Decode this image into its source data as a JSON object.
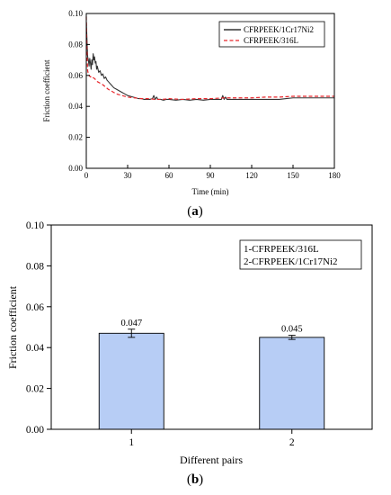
{
  "chart_data": [
    {
      "panel": "(a)",
      "panel_label": {
        "open": "(",
        "letter": "a",
        "close": ")"
      },
      "type": "line",
      "title": "",
      "xlabel": "Time (min)",
      "ylabel": "Friction coefficient",
      "xlim": [
        0,
        180
      ],
      "ylim": [
        0,
        0.1
      ],
      "xticks": [
        0,
        30,
        60,
        90,
        120,
        150,
        180
      ],
      "xtick_labels": [
        "0",
        "30",
        "60",
        "90",
        "120",
        "150",
        "180"
      ],
      "yticks": [
        0,
        0.02,
        0.04,
        0.06,
        0.08,
        0.1
      ],
      "ytick_labels": [
        "0.00",
        "0.02",
        "0.04",
        "0.06",
        "0.08",
        "0.10"
      ],
      "grid": false,
      "legend_position": "top-right",
      "series": [
        {
          "name": "CFRPEEK/1Cr17Ni2",
          "color": "#333333",
          "style": "solid",
          "x": [
            0,
            0.5,
            1,
            1.5,
            2,
            2.5,
            3,
            3.5,
            4,
            4.5,
            5,
            5.5,
            6,
            6.5,
            7,
            7.5,
            8,
            9,
            10,
            11,
            12,
            13,
            14,
            15,
            16,
            18,
            20,
            22,
            24,
            26,
            28,
            30,
            32,
            34,
            36,
            38,
            40,
            42,
            44,
            46,
            48,
            49,
            50,
            51,
            52,
            54,
            56,
            58,
            60,
            65,
            70,
            75,
            80,
            85,
            90,
            95,
            98,
            99,
            100,
            101,
            102,
            105,
            110,
            115,
            120,
            125,
            130,
            135,
            140,
            145,
            150,
            155,
            160,
            165,
            170,
            175,
            180
          ],
          "y": [
            0.095,
            0.083,
            0.072,
            0.07,
            0.066,
            0.071,
            0.068,
            0.064,
            0.07,
            0.067,
            0.074,
            0.07,
            0.072,
            0.068,
            0.069,
            0.064,
            0.066,
            0.062,
            0.063,
            0.06,
            0.061,
            0.058,
            0.059,
            0.057,
            0.056,
            0.054,
            0.052,
            0.051,
            0.05,
            0.049,
            0.048,
            0.047,
            0.0465,
            0.046,
            0.0455,
            0.045,
            0.045,
            0.0445,
            0.0445,
            0.0445,
            0.045,
            0.047,
            0.0445,
            0.046,
            0.0445,
            0.0445,
            0.044,
            0.0445,
            0.0445,
            0.044,
            0.0445,
            0.044,
            0.0445,
            0.044,
            0.0445,
            0.0445,
            0.0445,
            0.047,
            0.0445,
            0.046,
            0.0445,
            0.0445,
            0.0445,
            0.0445,
            0.0445,
            0.0445,
            0.0445,
            0.0445,
            0.0445,
            0.045,
            0.0455,
            0.0455,
            0.0455,
            0.0455,
            0.0455,
            0.0455,
            0.0455
          ]
        },
        {
          "name": "CFRPEEK/316L",
          "color": "#e8262b",
          "style": "dashed",
          "x": [
            0,
            0.5,
            1,
            1.5,
            2,
            3,
            4,
            5,
            6,
            7,
            8,
            9,
            10,
            11,
            12,
            14,
            16,
            18,
            20,
            22,
            24,
            26,
            28,
            30,
            35,
            40,
            45,
            50,
            55,
            60,
            70,
            80,
            90,
            100,
            110,
            120,
            130,
            140,
            150,
            160,
            170,
            180
          ],
          "y": [
            0.098,
            0.075,
            0.063,
            0.061,
            0.06,
            0.059,
            0.0595,
            0.0585,
            0.058,
            0.057,
            0.056,
            0.0555,
            0.055,
            0.0545,
            0.054,
            0.0525,
            0.051,
            0.05,
            0.049,
            0.048,
            0.0475,
            0.047,
            0.0465,
            0.046,
            0.0455,
            0.045,
            0.045,
            0.0445,
            0.0445,
            0.045,
            0.0445,
            0.045,
            0.045,
            0.0455,
            0.0455,
            0.0455,
            0.046,
            0.046,
            0.0465,
            0.0465,
            0.0465,
            0.0465
          ]
        }
      ]
    },
    {
      "panel": "(b)",
      "panel_label": {
        "open": "(",
        "letter": "b",
        "close": ")"
      },
      "type": "bar",
      "title": "",
      "xlabel": "Different pairs",
      "ylabel": "Friction coefficient",
      "categories": [
        "1",
        "2"
      ],
      "values": [
        0.047,
        0.045
      ],
      "errors": [
        0.002,
        0.001
      ],
      "data_labels": [
        "0.047",
        "0.045"
      ],
      "ylim": [
        0,
        0.1
      ],
      "yticks": [
        0,
        0.02,
        0.04,
        0.06,
        0.08,
        0.1
      ],
      "ytick_labels": [
        "0.00",
        "0.02",
        "0.04",
        "0.06",
        "0.08",
        "0.10"
      ],
      "grid": false,
      "bar_color": "#b7cdf5",
      "legend_position": "top-right",
      "legend_text": [
        "1-CFRPEEK/316L",
        "2-CFRPEEK/1Cr17Ni2"
      ]
    }
  ]
}
